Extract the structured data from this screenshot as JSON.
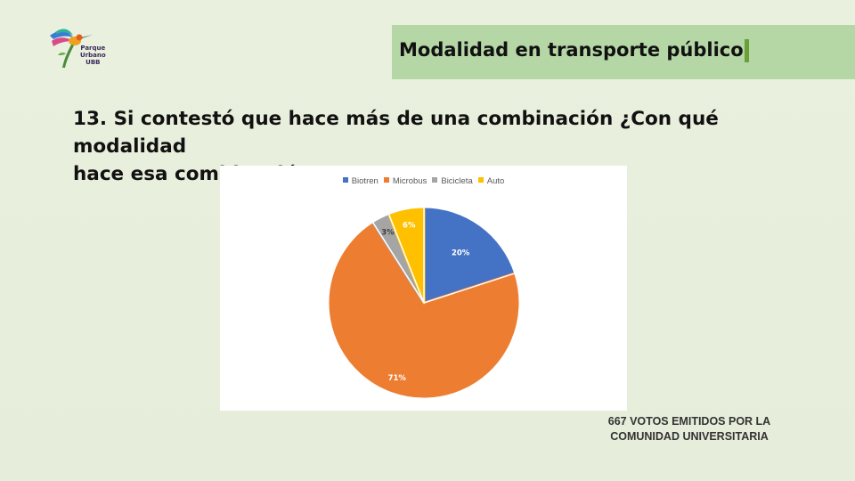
{
  "header": {
    "logo_lines": [
      "Parque",
      "Urbano",
      "UBB"
    ],
    "title": "Modalidad en transporte público"
  },
  "question": {
    "line1": "13. Si contestó que hace más de una combinación ¿Con qué modalidad",
    "line2": "hace esa combinación?"
  },
  "chart_data": {
    "type": "pie",
    "title": "",
    "legend_position": "top",
    "categories": [
      "Biotren",
      "Microbus",
      "Bicicleta",
      "Auto"
    ],
    "values": [
      20,
      71,
      3,
      6
    ],
    "labels": [
      "20%",
      "71%",
      "3%",
      "6%"
    ],
    "colors": [
      "#4472c4",
      "#ed7d31",
      "#a5a5a5",
      "#ffc000"
    ],
    "label_colors": [
      "#ffffff",
      "#ffffff",
      "#404040",
      "#ffffff"
    ]
  },
  "footnote": {
    "line1": "667  VOTOS EMITIDOS POR LA",
    "line2": "COMUNIDAD UNIVERSITARIA"
  }
}
